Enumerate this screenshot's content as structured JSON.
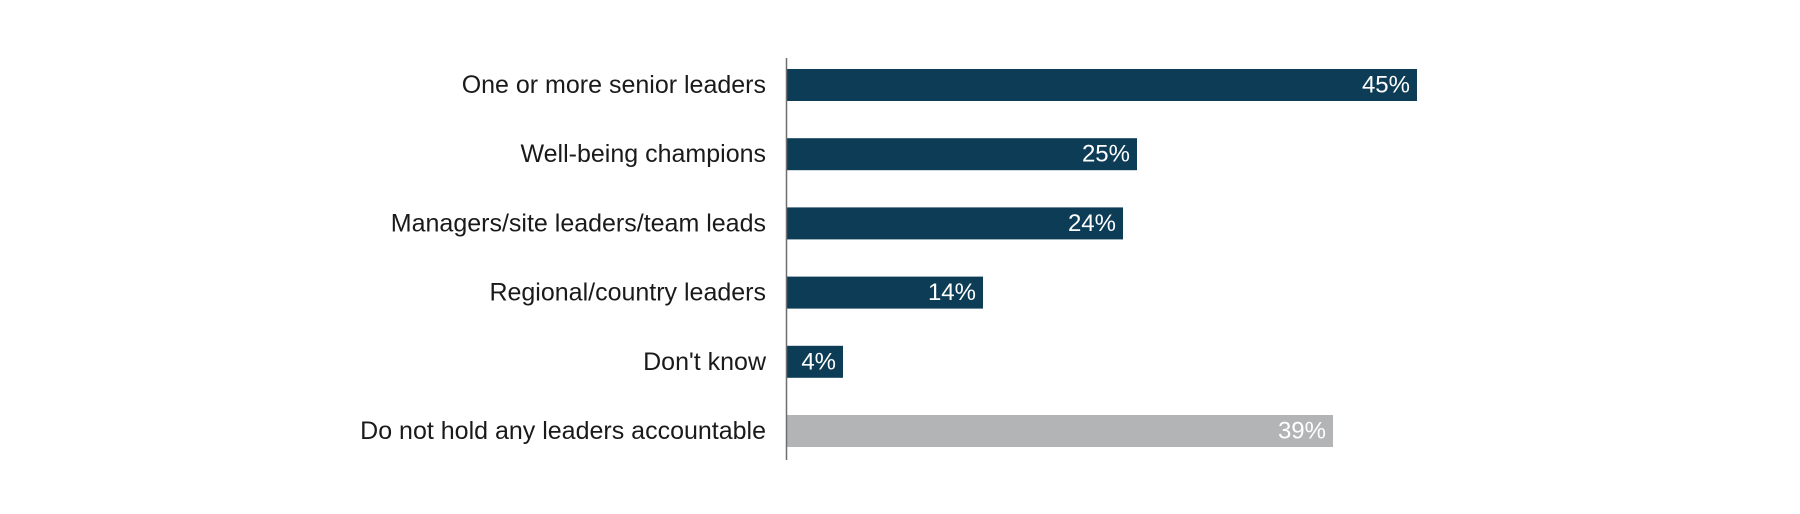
{
  "chart_data": {
    "type": "bar",
    "orientation": "horizontal",
    "title": "",
    "xlabel": "",
    "ylabel": "",
    "categories": [
      "One or more senior leaders",
      "Well-being champions",
      "Managers/site leaders/team leads",
      "Regional/country leaders",
      "Don't know",
      "Do not hold any leaders accountable"
    ],
    "values": [
      45,
      25,
      24,
      14,
      4,
      39
    ],
    "value_labels": [
      "45%",
      "25%",
      "24%",
      "14%",
      "4%",
      "39%"
    ],
    "colors": [
      "#0d3d56",
      "#0d3d56",
      "#0d3d56",
      "#0d3d56",
      "#0d3d56",
      "#b3b4b5"
    ],
    "xlim": [
      0,
      100
    ],
    "grid": false,
    "legend": "none"
  }
}
